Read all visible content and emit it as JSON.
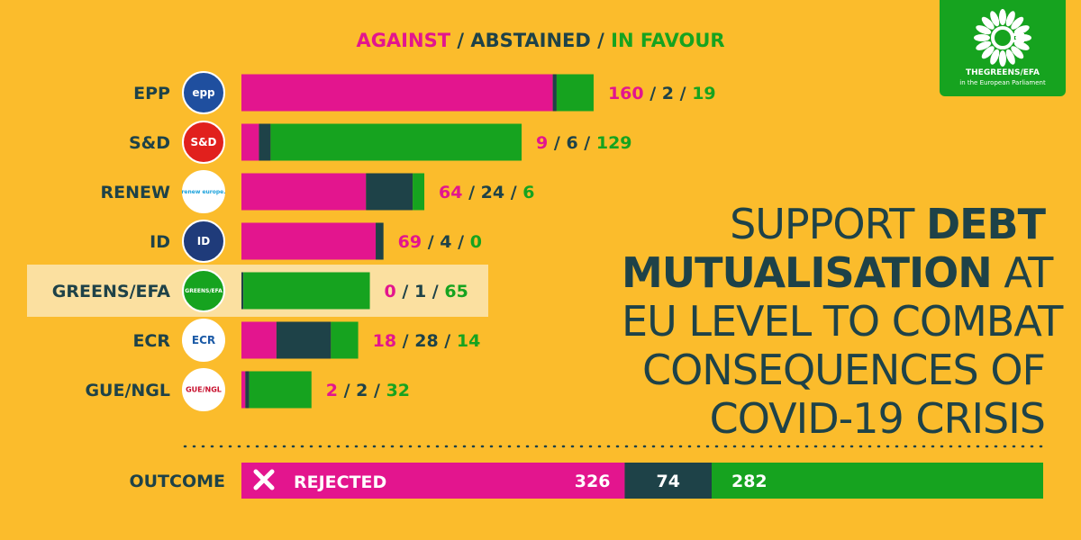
{
  "legend": {
    "against": "AGAINST",
    "abstained": "ABSTAINED",
    "in_favour": "IN FAVOUR",
    "sep": " / "
  },
  "title_parts": {
    "l1a": "SUPPORT ",
    "l1b": "DEBT",
    "l2a": "MUTUALISATION",
    "l2b": " AT",
    "l3": "EU LEVEL TO COMBAT",
    "l4": "CONSEQUENCES OF",
    "l5": "COVID-19 CRISIS"
  },
  "colors": {
    "against": "#e3158e",
    "abstained": "#1e4248",
    "in_favour": "#16a31f",
    "highlight": "#fbe0a0",
    "background": "#fbbc2c"
  },
  "chart_data": {
    "type": "bar",
    "stacked": true,
    "orientation": "horizontal",
    "categories": [
      "EPP",
      "S&D",
      "RENEW",
      "ID",
      "GREENS/EFA",
      "ECR",
      "GUE/NGL"
    ],
    "series": [
      {
        "name": "AGAINST",
        "values": [
          160,
          9,
          64,
          69,
          0,
          18,
          2
        ]
      },
      {
        "name": "ABSTAINED",
        "values": [
          2,
          6,
          24,
          4,
          1,
          28,
          2
        ]
      },
      {
        "name": "IN FAVOUR",
        "values": [
          19,
          129,
          6,
          0,
          65,
          14,
          32
        ]
      }
    ],
    "highlighted_category": "GREENS/EFA",
    "logos": [
      {
        "category": "EPP",
        "text": "epp",
        "bg": "#1f4f9f",
        "fg": "#ffffff"
      },
      {
        "category": "S&D",
        "text": "S&D",
        "bg": "#e1201d",
        "fg": "#ffffff"
      },
      {
        "category": "RENEW",
        "text": "renew europe.",
        "bg": "#ffffff",
        "fg": "#1aa1db"
      },
      {
        "category": "ID",
        "text": "ID",
        "bg": "#1f3b7a",
        "fg": "#ffffff"
      },
      {
        "category": "GREENS/EFA",
        "text": "GREENS/EFA",
        "bg": "#16a31f",
        "fg": "#ffffff"
      },
      {
        "category": "ECR",
        "text": "ECR",
        "bg": "#ffffff",
        "fg": "#1b5aa6"
      },
      {
        "category": "GUE/NGL",
        "text": "GUE/NGL",
        "bg": "#ffffff",
        "fg": "#c8102e"
      }
    ],
    "outcome": {
      "label": "OUTCOME",
      "result": "REJECTED",
      "values": [
        326,
        74,
        282
      ]
    }
  },
  "brand": {
    "name": "THEGREENS/EFA",
    "subtitle": "in the European Parliament"
  }
}
